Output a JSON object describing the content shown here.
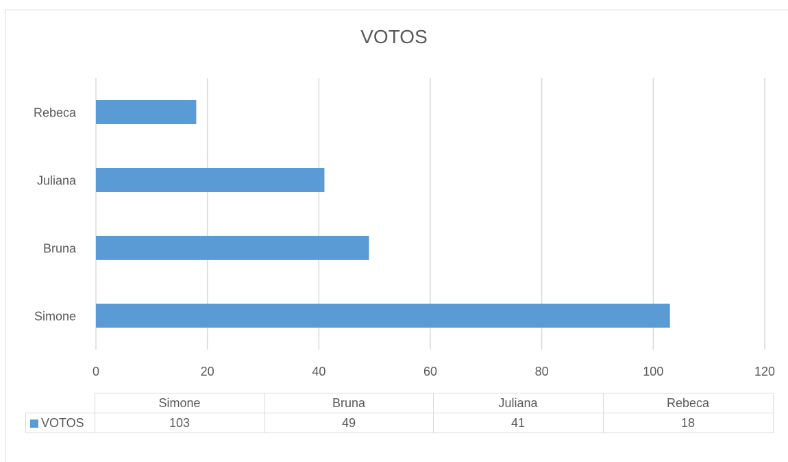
{
  "chart_data": {
    "type": "bar",
    "orientation": "horizontal",
    "title": "VOTOS",
    "categories": [
      "Simone",
      "Bruna",
      "Juliana",
      "Rebeca"
    ],
    "series": [
      {
        "name": "VOTOS",
        "values": [
          103,
          49,
          41,
          18
        ],
        "color": "#5b9bd5"
      }
    ],
    "x_ticks": [
      0,
      20,
      40,
      60,
      80,
      100,
      120
    ],
    "xlim": [
      0,
      120
    ],
    "grid": true,
    "data_table": true
  }
}
